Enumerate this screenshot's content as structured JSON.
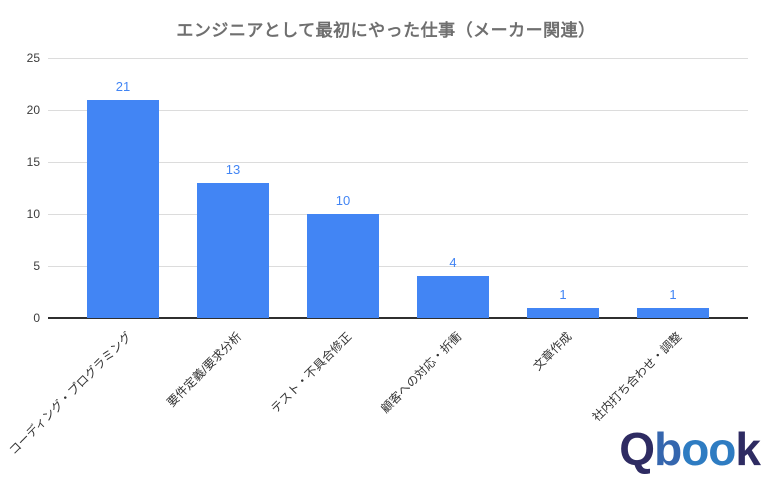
{
  "chart_data": {
    "type": "bar",
    "title": "エンジニアとして最初にやった仕事（メーカー関連）",
    "categories": [
      "コーディング・プログラミング",
      "要件定義/要求分析",
      "テスト・不具合修正",
      "顧客への対応・折衝",
      "文章作成",
      "社内打ち合わせ・調整"
    ],
    "values": [
      21,
      13,
      10,
      4,
      1,
      1
    ],
    "annotations": [
      "21",
      "13",
      "10",
      "4",
      "1",
      "1"
    ],
    "xlabel": "",
    "ylabel": "",
    "ylim": [
      0,
      25
    ],
    "yticks": [
      0,
      5,
      10,
      15,
      20,
      25
    ],
    "grid": true,
    "legend": "none",
    "category_label_rotation_deg": -45
  },
  "logo": {
    "text": "Qbook",
    "letters": [
      {
        "char": "Q",
        "color": "#2e2b62"
      },
      {
        "char": "b",
        "color": "#3566ae"
      },
      {
        "char": "o",
        "color": "#2e7cc2"
      },
      {
        "char": "o",
        "color": "#2e7cc2"
      },
      {
        "char": "k",
        "color": "#2e2b62"
      }
    ]
  },
  "colors": {
    "bar": "#4285f4",
    "annotation_text": "#4285f4",
    "title_text": "#6f6f6f",
    "axis_text": "#3c3c3c",
    "category_text": "#333333",
    "gridline": "#dcdcdc",
    "baseline": "#2f2f2f",
    "background": "#ffffff"
  }
}
